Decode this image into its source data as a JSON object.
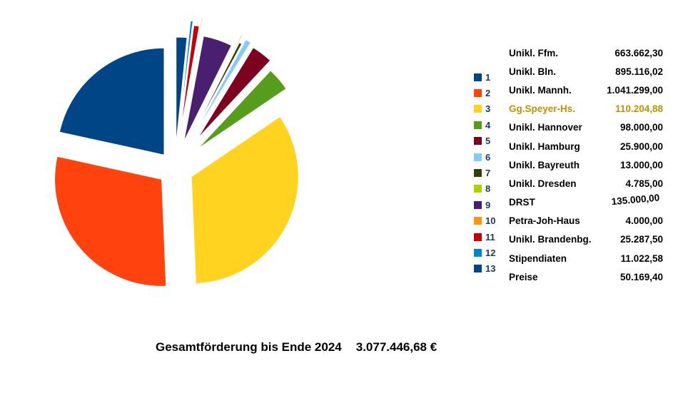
{
  "chart_data": {
    "type": "pie",
    "title": "Gesamtförderung bis Ende 2024   3.077.446,68 €",
    "total_label": "Gesamtförderung bis Ende 2024",
    "total_value": "3.077.446,68 €",
    "start_angle_deg": 90,
    "direction": "counterclockwise",
    "exploded": true,
    "legend_position": "right",
    "slices": [
      {
        "index": 1,
        "label": "Unikl. Ffm.",
        "value": 663662.3,
        "display_value": "663.662,30",
        "color": "#004586"
      },
      {
        "index": 2,
        "label": "Unikl. Bln.",
        "value": 895116.02,
        "display_value": "895.116,02",
        "color": "#FF420E"
      },
      {
        "index": 3,
        "label": "Unikl. Mannh.",
        "value": 1041299.0,
        "display_value": "1.041.299,00",
        "color": "#FFD320"
      },
      {
        "index": 4,
        "label": "Gg.Speyer-Hs.",
        "value": 110204.88,
        "display_value": "110.204,88",
        "color": "#579D1C",
        "text_color": "#C09100"
      },
      {
        "index": 5,
        "label": "Unikl. Hannover",
        "value": 98000.0,
        "display_value": "98.000,00",
        "color": "#7E0021"
      },
      {
        "index": 6,
        "label": "Unikl. Hamburg",
        "value": 25900.0,
        "display_value": "25.900,00",
        "color": "#83CAFF"
      },
      {
        "index": 7,
        "label": "Unikl. Bayreuth",
        "value": 13000.0,
        "display_value": "13.000,00",
        "color": "#314004"
      },
      {
        "index": 8,
        "label": "Unikl. Dresden",
        "value": 4785.0,
        "display_value": "4.785,00",
        "color": "#AECF00"
      },
      {
        "index": 9,
        "label": "DRST",
        "value": 135000.0,
        "display_value": "135.000,00",
        "color": "#4B1F6F",
        "value_tilted": true
      },
      {
        "index": 10,
        "label": "Petra-Joh-Haus",
        "value": 4000.0,
        "display_value": "4.000,00",
        "color": "#FF950E"
      },
      {
        "index": 11,
        "label": "Unikl. Brandenbg.",
        "value": 25287.5,
        "display_value": "25.287,50",
        "color": "#C5000B"
      },
      {
        "index": 12,
        "label": "Stipendiaten",
        "value": 11022.58,
        "display_value": "11.022,58",
        "color": "#0084D1"
      },
      {
        "index": 13,
        "label": "Preise",
        "value": 50169.4,
        "display_value": "50.169,40",
        "color": "#004586"
      }
    ]
  }
}
